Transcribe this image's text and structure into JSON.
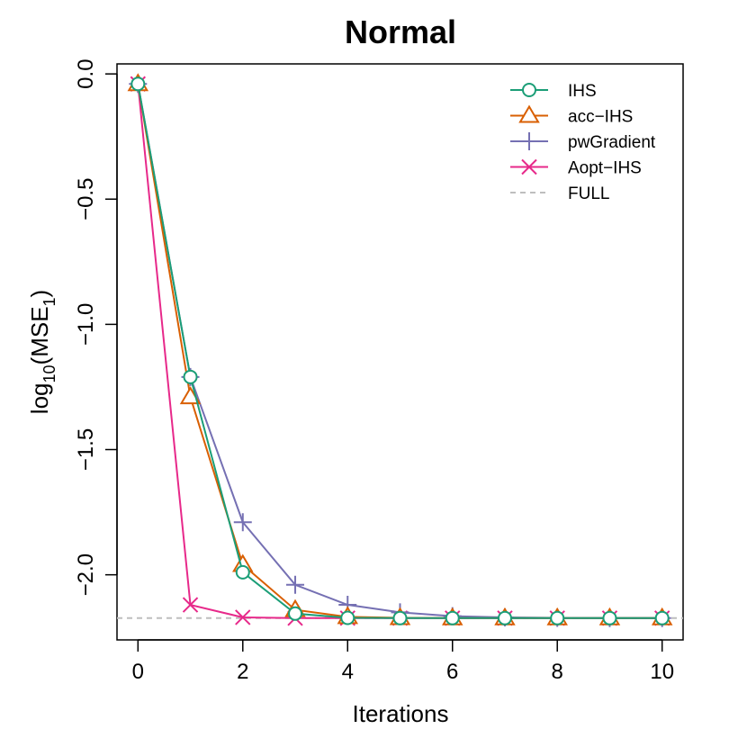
{
  "chart_data": {
    "type": "line",
    "title": "Normal",
    "xlabel": "Iterations",
    "ylabel": {
      "base": "log",
      "sub1": "10",
      "mid": "(MSE",
      "sub2": "1",
      "end": ")"
    },
    "xlim": [
      -0.4,
      10.4
    ],
    "ylim": [
      -2.26,
      0.04
    ],
    "xticks": [
      0,
      2,
      4,
      6,
      8,
      10
    ],
    "yticks": [
      0.0,
      -0.5,
      -1.0,
      -1.5,
      -2.0
    ],
    "xtick_labels": [
      "0",
      "2",
      "4",
      "6",
      "8",
      "10"
    ],
    "ytick_labels": [
      "0.0",
      "−0.5",
      "−1.0",
      "−1.5",
      "−2.0"
    ],
    "x": [
      0,
      1,
      2,
      3,
      4,
      5,
      6,
      7,
      8,
      9,
      10
    ],
    "series": [
      {
        "name": "IHS",
        "color": "#1b9e77",
        "marker": "circle",
        "values": [
          -0.04,
          -1.21,
          -1.99,
          -2.155,
          -2.172,
          -2.173,
          -2.173,
          -2.173,
          -2.173,
          -2.173,
          -2.173
        ]
      },
      {
        "name": "acc−IHS",
        "color": "#d95f02",
        "marker": "triangle",
        "values": [
          -0.04,
          -1.29,
          -1.96,
          -2.14,
          -2.168,
          -2.172,
          -2.173,
          -2.173,
          -2.173,
          -2.173,
          -2.173
        ]
      },
      {
        "name": "pwGradient",
        "color": "#7570b3",
        "marker": "plus",
        "values": [
          -0.04,
          -1.21,
          -1.79,
          -2.04,
          -2.12,
          -2.15,
          -2.165,
          -2.17,
          -2.172,
          -2.173,
          -2.173
        ]
      },
      {
        "name": "Aopt−IHS",
        "color": "#e7298a",
        "marker": "cross",
        "values": [
          -0.04,
          -2.12,
          -2.17,
          -2.173,
          -2.173,
          -2.173,
          -2.173,
          -2.173,
          -2.173,
          -2.173,
          -2.173
        ]
      }
    ],
    "reference_line": {
      "name": "FULL",
      "value": -2.173,
      "color": "#bebebe",
      "style": "dashed"
    },
    "legend_position": "top-right",
    "grid": false
  }
}
